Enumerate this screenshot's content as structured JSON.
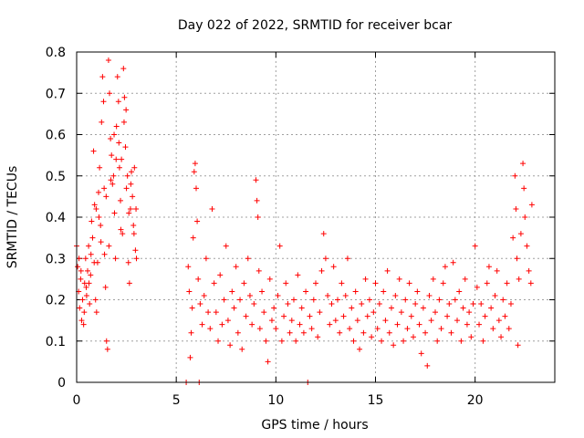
{
  "chart_data": {
    "type": "scatter",
    "title": "Day 022 of 2022, SRMTID for receiver bcar",
    "xlabel": "GPS time / hours",
    "ylabel": "SRMTID / TECUs",
    "xlim": [
      0,
      24
    ],
    "ylim": [
      0,
      0.8
    ],
    "grid": true,
    "marker": "plus",
    "color": "#ff0000",
    "x_ticks": [
      0,
      5,
      10,
      15,
      20
    ],
    "x_tick_labels": [
      "0",
      "5",
      "10",
      "15",
      "20"
    ],
    "y_ticks": [
      0,
      0.1,
      0.2,
      0.3,
      0.4,
      0.5,
      0.6,
      0.7,
      0.8
    ],
    "y_tick_labels": [
      "0",
      "0.1",
      "0.2",
      "0.3",
      "0.4",
      "0.5",
      "0.6",
      "0.7",
      "0.8"
    ],
    "series": [
      {
        "name": "SRMTID",
        "points": [
          [
            0.0,
            0.33
          ],
          [
            0.05,
            0.28
          ],
          [
            0.1,
            0.22
          ],
          [
            0.15,
            0.18
          ],
          [
            0.2,
            0.25
          ],
          [
            0.25,
            0.15
          ],
          [
            0.3,
            0.2
          ],
          [
            0.35,
            0.14
          ],
          [
            0.4,
            0.24
          ],
          [
            0.45,
            0.3
          ],
          [
            0.5,
            0.21
          ],
          [
            0.55,
            0.27
          ],
          [
            0.6,
            0.33
          ],
          [
            0.65,
            0.19
          ],
          [
            0.7,
            0.26
          ],
          [
            0.75,
            0.39
          ],
          [
            0.8,
            0.35
          ],
          [
            0.85,
            0.56
          ],
          [
            0.9,
            0.43
          ],
          [
            0.95,
            0.2
          ],
          [
            1.0,
            0.17
          ],
          [
            1.05,
            0.29
          ],
          [
            1.1,
            0.46
          ],
          [
            1.15,
            0.52
          ],
          [
            1.2,
            0.38
          ],
          [
            1.25,
            0.63
          ],
          [
            1.3,
            0.74
          ],
          [
            1.35,
            0.68
          ],
          [
            1.4,
            0.31
          ],
          [
            1.45,
            0.23
          ],
          [
            1.5,
            0.1
          ],
          [
            1.55,
            0.08
          ],
          [
            1.6,
            0.78
          ],
          [
            1.65,
            0.7
          ],
          [
            1.7,
            0.59
          ],
          [
            1.75,
            0.55
          ],
          [
            1.8,
            0.48
          ],
          [
            1.85,
            0.5
          ],
          [
            1.9,
            0.41
          ],
          [
            1.95,
            0.3
          ],
          [
            2.0,
            0.62
          ],
          [
            2.05,
            0.74
          ],
          [
            2.1,
            0.68
          ],
          [
            2.15,
            0.52
          ],
          [
            2.2,
            0.44
          ],
          [
            2.25,
            0.54
          ],
          [
            2.3,
            0.36
          ],
          [
            2.35,
            0.76
          ],
          [
            2.4,
            0.69
          ],
          [
            2.45,
            0.57
          ],
          [
            2.5,
            0.47
          ],
          [
            2.55,
            0.5
          ],
          [
            2.6,
            0.29
          ],
          [
            2.65,
            0.24
          ],
          [
            2.7,
            0.42
          ],
          [
            2.75,
            0.51
          ],
          [
            2.8,
            0.45
          ],
          [
            2.85,
            0.38
          ],
          [
            2.9,
            0.52
          ],
          [
            2.95,
            0.32
          ],
          [
            3.0,
            0.3
          ],
          [
            0.12,
            0.3
          ],
          [
            0.38,
            0.17
          ],
          [
            0.62,
            0.24
          ],
          [
            0.88,
            0.29
          ],
          [
            1.12,
            0.4
          ],
          [
            1.38,
            0.47
          ],
          [
            1.62,
            0.33
          ],
          [
            1.88,
            0.6
          ],
          [
            2.12,
            0.58
          ],
          [
            2.38,
            0.63
          ],
          [
            2.62,
            0.41
          ],
          [
            2.88,
            0.36
          ],
          [
            0.22,
            0.27
          ],
          [
            0.48,
            0.23
          ],
          [
            0.72,
            0.31
          ],
          [
            0.98,
            0.42
          ],
          [
            1.22,
            0.34
          ],
          [
            1.48,
            0.45
          ],
          [
            1.72,
            0.49
          ],
          [
            1.98,
            0.54
          ],
          [
            2.22,
            0.37
          ],
          [
            2.48,
            0.66
          ],
          [
            2.72,
            0.48
          ],
          [
            2.98,
            0.42
          ],
          [
            5.5,
            0.0
          ],
          [
            5.6,
            0.28
          ],
          [
            5.65,
            0.22
          ],
          [
            5.7,
            0.06
          ],
          [
            5.75,
            0.12
          ],
          [
            5.8,
            0.18
          ],
          [
            5.85,
            0.35
          ],
          [
            5.9,
            0.51
          ],
          [
            5.95,
            0.53
          ],
          [
            6.0,
            0.47
          ],
          [
            6.05,
            0.39
          ],
          [
            6.1,
            0.25
          ],
          [
            6.15,
            0.0
          ],
          [
            6.2,
            0.19
          ],
          [
            6.3,
            0.14
          ],
          [
            6.4,
            0.21
          ],
          [
            6.5,
            0.3
          ],
          [
            6.6,
            0.17
          ],
          [
            6.7,
            0.13
          ],
          [
            6.8,
            0.42
          ],
          [
            6.9,
            0.24
          ],
          [
            7.0,
            0.17
          ],
          [
            7.1,
            0.1
          ],
          [
            7.2,
            0.26
          ],
          [
            7.3,
            0.14
          ],
          [
            7.4,
            0.2
          ],
          [
            7.5,
            0.33
          ],
          [
            7.6,
            0.15
          ],
          [
            7.7,
            0.09
          ],
          [
            7.8,
            0.22
          ],
          [
            7.9,
            0.18
          ],
          [
            8.0,
            0.28
          ],
          [
            8.1,
            0.12
          ],
          [
            8.2,
            0.2
          ],
          [
            8.3,
            0.08
          ],
          [
            8.4,
            0.24
          ],
          [
            8.5,
            0.16
          ],
          [
            8.6,
            0.3
          ],
          [
            8.7,
            0.21
          ],
          [
            8.8,
            0.14
          ],
          [
            8.9,
            0.19
          ],
          [
            9.0,
            0.49
          ],
          [
            9.05,
            0.44
          ],
          [
            9.1,
            0.4
          ],
          [
            9.15,
            0.27
          ],
          [
            9.2,
            0.13
          ],
          [
            9.3,
            0.22
          ],
          [
            9.4,
            0.17
          ],
          [
            9.5,
            0.1
          ],
          [
            9.6,
            0.05
          ],
          [
            9.7,
            0.25
          ],
          [
            9.8,
            0.15
          ],
          [
            9.9,
            0.18
          ],
          [
            10.0,
            0.13
          ],
          [
            10.1,
            0.21
          ],
          [
            10.2,
            0.33
          ],
          [
            10.3,
            0.1
          ],
          [
            10.4,
            0.16
          ],
          [
            10.5,
            0.24
          ],
          [
            10.6,
            0.19
          ],
          [
            10.7,
            0.12
          ],
          [
            10.8,
            0.15
          ],
          [
            10.9,
            0.2
          ],
          [
            11.0,
            0.1
          ],
          [
            11.1,
            0.26
          ],
          [
            11.2,
            0.14
          ],
          [
            11.3,
            0.18
          ],
          [
            11.4,
            0.12
          ],
          [
            11.5,
            0.22
          ],
          [
            11.6,
            0.0
          ],
          [
            11.7,
            0.16
          ],
          [
            11.8,
            0.13
          ],
          [
            11.9,
            0.2
          ],
          [
            12.0,
            0.24
          ],
          [
            12.1,
            0.11
          ],
          [
            12.2,
            0.17
          ],
          [
            12.3,
            0.27
          ],
          [
            12.4,
            0.36
          ],
          [
            12.5,
            0.3
          ],
          [
            12.6,
            0.21
          ],
          [
            12.7,
            0.14
          ],
          [
            12.8,
            0.19
          ],
          [
            12.9,
            0.28
          ],
          [
            13.0,
            0.15
          ],
          [
            13.1,
            0.2
          ],
          [
            13.2,
            0.12
          ],
          [
            13.3,
            0.24
          ],
          [
            13.4,
            0.16
          ],
          [
            13.5,
            0.21
          ],
          [
            13.6,
            0.3
          ],
          [
            13.7,
            0.13
          ],
          [
            13.8,
            0.18
          ],
          [
            13.9,
            0.1
          ],
          [
            14.0,
            0.22
          ],
          [
            14.1,
            0.15
          ],
          [
            14.2,
            0.08
          ],
          [
            14.3,
            0.19
          ],
          [
            14.4,
            0.12
          ],
          [
            14.5,
            0.25
          ],
          [
            14.6,
            0.16
          ],
          [
            14.7,
            0.2
          ],
          [
            14.8,
            0.11
          ],
          [
            14.9,
            0.17
          ],
          [
            15.0,
            0.24
          ],
          [
            15.1,
            0.13
          ],
          [
            15.2,
            0.19
          ],
          [
            15.3,
            0.1
          ],
          [
            15.4,
            0.22
          ],
          [
            15.5,
            0.15
          ],
          [
            15.6,
            0.27
          ],
          [
            15.7,
            0.12
          ],
          [
            15.8,
            0.18
          ],
          [
            15.9,
            0.09
          ],
          [
            16.0,
            0.21
          ],
          [
            16.1,
            0.14
          ],
          [
            16.2,
            0.25
          ],
          [
            16.3,
            0.17
          ],
          [
            16.4,
            0.1
          ],
          [
            16.5,
            0.2
          ],
          [
            16.6,
            0.13
          ],
          [
            16.7,
            0.24
          ],
          [
            16.8,
            0.16
          ],
          [
            16.9,
            0.11
          ],
          [
            17.0,
            0.19
          ],
          [
            17.1,
            0.22
          ],
          [
            17.2,
            0.14
          ],
          [
            17.3,
            0.07
          ],
          [
            17.4,
            0.18
          ],
          [
            17.5,
            0.12
          ],
          [
            17.6,
            0.04
          ],
          [
            17.7,
            0.21
          ],
          [
            17.8,
            0.15
          ],
          [
            17.9,
            0.25
          ],
          [
            18.0,
            0.17
          ],
          [
            18.1,
            0.1
          ],
          [
            18.2,
            0.2
          ],
          [
            18.3,
            0.13
          ],
          [
            18.4,
            0.24
          ],
          [
            18.5,
            0.28
          ],
          [
            18.6,
            0.16
          ],
          [
            18.7,
            0.19
          ],
          [
            18.8,
            0.12
          ],
          [
            18.9,
            0.29
          ],
          [
            19.0,
            0.2
          ],
          [
            19.1,
            0.15
          ],
          [
            19.2,
            0.22
          ],
          [
            19.3,
            0.1
          ],
          [
            19.4,
            0.18
          ],
          [
            19.5,
            0.25
          ],
          [
            19.6,
            0.14
          ],
          [
            19.7,
            0.17
          ],
          [
            19.8,
            0.11
          ],
          [
            19.9,
            0.19
          ],
          [
            20.0,
            0.33
          ],
          [
            20.1,
            0.23
          ],
          [
            20.2,
            0.14
          ],
          [
            20.3,
            0.19
          ],
          [
            20.4,
            0.1
          ],
          [
            20.5,
            0.16
          ],
          [
            20.6,
            0.24
          ],
          [
            20.7,
            0.28
          ],
          [
            20.8,
            0.18
          ],
          [
            20.9,
            0.13
          ],
          [
            21.0,
            0.21
          ],
          [
            21.1,
            0.27
          ],
          [
            21.2,
            0.15
          ],
          [
            21.3,
            0.11
          ],
          [
            21.4,
            0.2
          ],
          [
            21.5,
            0.16
          ],
          [
            21.6,
            0.24
          ],
          [
            21.7,
            0.13
          ],
          [
            21.8,
            0.19
          ],
          [
            21.9,
            0.35
          ],
          [
            22.0,
            0.5
          ],
          [
            22.05,
            0.42
          ],
          [
            22.1,
            0.3
          ],
          [
            22.15,
            0.09
          ],
          [
            22.2,
            0.25
          ],
          [
            22.3,
            0.36
          ],
          [
            22.4,
            0.53
          ],
          [
            22.45,
            0.47
          ],
          [
            22.5,
            0.4
          ],
          [
            22.6,
            0.33
          ],
          [
            22.7,
            0.27
          ],
          [
            22.8,
            0.24
          ],
          [
            22.85,
            0.43
          ]
        ]
      }
    ]
  }
}
